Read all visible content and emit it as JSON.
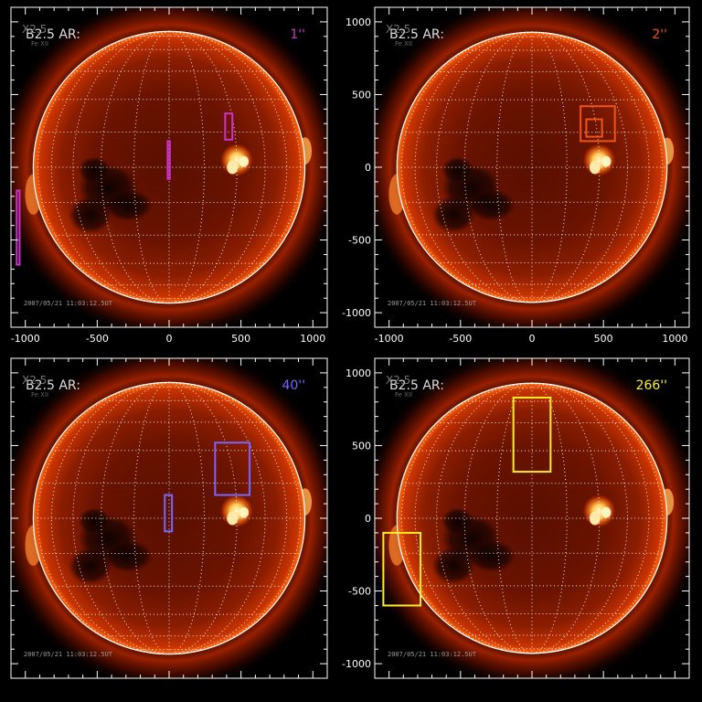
{
  "figure": {
    "background": "#000000",
    "axis_color": "#ffffff",
    "tick_values": [
      -1000,
      -500,
      0,
      500,
      1000
    ],
    "x_range": [
      -1100,
      1100
    ],
    "y_range": [
      -1100,
      1100
    ],
    "solar_radius_arcsec": 945,
    "panels": [
      {
        "id": "top-left",
        "title": "B2.5 AR:",
        "subtitle": "X2.5",
        "subsubtitle": "Fe XII",
        "scale_label": "1''",
        "scale_color": "#cc33cc",
        "timestamp": "2007/05/21 11:03:12.5UT",
        "show_x_ticklabels": true,
        "show_y_ticklabels": false,
        "rectangles": [
          {
            "x0": 390,
            "y0": 190,
            "x1": 440,
            "y1": 370
          },
          {
            "x0": -10,
            "y0": -80,
            "x1": 5,
            "y1": 180
          },
          {
            "x0": -1060,
            "y0": -670,
            "x1": -1040,
            "y1": -160
          }
        ]
      },
      {
        "id": "top-right",
        "title": "B2.5 AR:",
        "subtitle": "X2.5",
        "subsubtitle": "Fe XII",
        "scale_label": "2''",
        "scale_color": "#ee5511",
        "timestamp": "2007/05/21 11:03:12.5UT",
        "show_x_ticklabels": true,
        "show_y_ticklabels": true,
        "rectangles": [
          {
            "x0": 340,
            "y0": 180,
            "x1": 580,
            "y1": 420
          },
          {
            "x0": 380,
            "y0": 210,
            "x1": 490,
            "y1": 330
          }
        ]
      },
      {
        "id": "bottom-left",
        "title": "B2.5 AR:",
        "subtitle": "X2.5",
        "subsubtitle": "Fe XII",
        "scale_label": "40''",
        "scale_color": "#7766ff",
        "timestamp": "2007/05/21 11:03:12.5UT",
        "show_x_ticklabels": false,
        "show_y_ticklabels": false,
        "rectangles": [
          {
            "x0": 320,
            "y0": 160,
            "x1": 560,
            "y1": 520
          },
          {
            "x0": -30,
            "y0": -90,
            "x1": 20,
            "y1": 160
          }
        ]
      },
      {
        "id": "bottom-right",
        "title": "B2.5 AR:",
        "subtitle": "X2.5",
        "subsubtitle": "Fe XII",
        "scale_label": "266''",
        "scale_color": "#ffee22",
        "timestamp": "2007/05/21 11:03:12.5UT",
        "show_x_ticklabels": false,
        "show_y_ticklabels": true,
        "rectangles": [
          {
            "x0": -1040,
            "y0": -600,
            "x1": -780,
            "y1": -100
          },
          {
            "x0": -130,
            "y0": 320,
            "x1": 130,
            "y1": 830
          }
        ]
      }
    ]
  }
}
